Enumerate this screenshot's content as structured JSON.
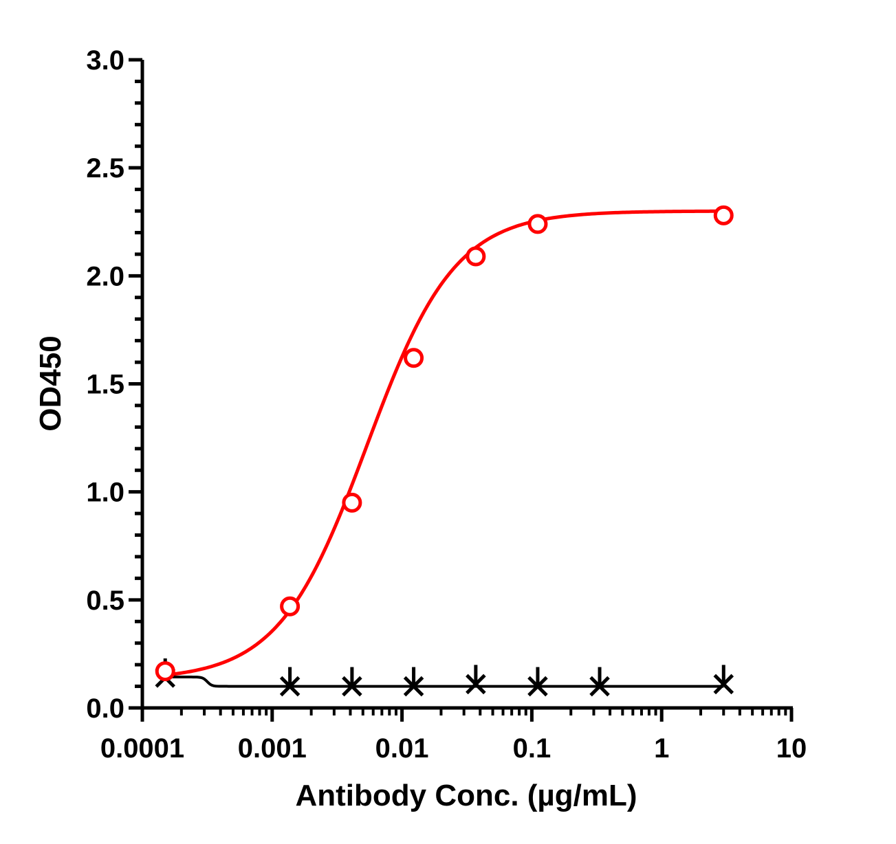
{
  "chart_data": {
    "type": "scatter",
    "title": "",
    "xlabel": "Antibody Conc. (µg/mL)",
    "ylabel": "OD450",
    "x_scale": "log",
    "xlim": [
      0.0001,
      10
    ],
    "ylim": [
      0,
      3.0
    ],
    "x_ticks": [
      {
        "value": 0.0001,
        "label": "0.0001"
      },
      {
        "value": 0.001,
        "label": "0.001"
      },
      {
        "value": 0.01,
        "label": "0.01"
      },
      {
        "value": 0.1,
        "label": "0.1"
      },
      {
        "value": 1,
        "label": "1"
      },
      {
        "value": 10,
        "label": "10"
      }
    ],
    "y_ticks": [
      {
        "value": 0,
        "label": "0.0"
      },
      {
        "value": 0.5,
        "label": "0.5"
      },
      {
        "value": 1.0,
        "label": "1.0"
      },
      {
        "value": 1.5,
        "label": "1.5"
      },
      {
        "value": 2.0,
        "label": "2.0"
      },
      {
        "value": 2.5,
        "label": "2.5"
      },
      {
        "value": 3.0,
        "label": "3.0"
      }
    ],
    "grid": false,
    "legend": "none",
    "series": [
      {
        "marker": "open-circle",
        "color": "#ff0000",
        "fit": "sigmoidal",
        "x": [
          0.00015,
          0.00137,
          0.00412,
          0.0123,
          0.037,
          0.111,
          3.0
        ],
        "y": [
          0.17,
          0.47,
          0.95,
          1.62,
          2.09,
          2.24,
          2.28
        ]
      },
      {
        "marker": "asterisk",
        "color": "#000000",
        "fit": "sigmoidal",
        "x": [
          0.00015,
          0.00137,
          0.00412,
          0.0123,
          0.037,
          0.111,
          0.333,
          3.0
        ],
        "y": [
          0.14,
          0.1,
          0.1,
          0.1,
          0.11,
          0.1,
          0.1,
          0.11
        ]
      }
    ]
  }
}
